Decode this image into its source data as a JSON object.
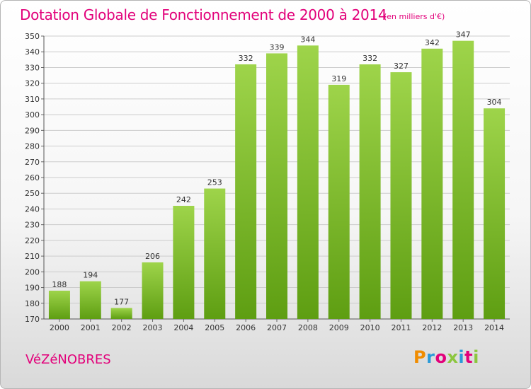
{
  "header": {
    "title": "Dotation Globale de Fonctionnement de 2000 à 2014",
    "unit": "(en milliers d'€)"
  },
  "footer": {
    "commune": "VéZéNOBRES",
    "logo_text": "Proxiti",
    "logo_colors": [
      "#f08c00",
      "#2a9ad8",
      "#e2007a",
      "#8cc63f",
      "#2a9ad8",
      "#e2007a",
      "#8cc63f"
    ]
  },
  "colors": {
    "accent": "#e2007a",
    "bar_top": "#9ed44a",
    "bar_bottom": "#5e9e12",
    "grid": "#cccccc"
  },
  "chart_data": {
    "type": "bar",
    "title": "Dotation Globale de Fonctionnement de 2000 à 2014",
    "subtitle": "(en milliers d'€)",
    "categories": [
      "2000",
      "2001",
      "2002",
      "2003",
      "2004",
      "2005",
      "2006",
      "2007",
      "2008",
      "2009",
      "2010",
      "2011",
      "2012",
      "2013",
      "2014"
    ],
    "values": [
      188,
      194,
      177,
      206,
      242,
      253,
      332,
      339,
      344,
      319,
      332,
      327,
      342,
      347,
      304
    ],
    "ylim": [
      170,
      350
    ],
    "yticks": [
      170,
      180,
      190,
      200,
      210,
      220,
      230,
      240,
      250,
      260,
      270,
      280,
      290,
      300,
      310,
      320,
      330,
      340,
      350
    ],
    "grid": true,
    "legend": "none"
  }
}
